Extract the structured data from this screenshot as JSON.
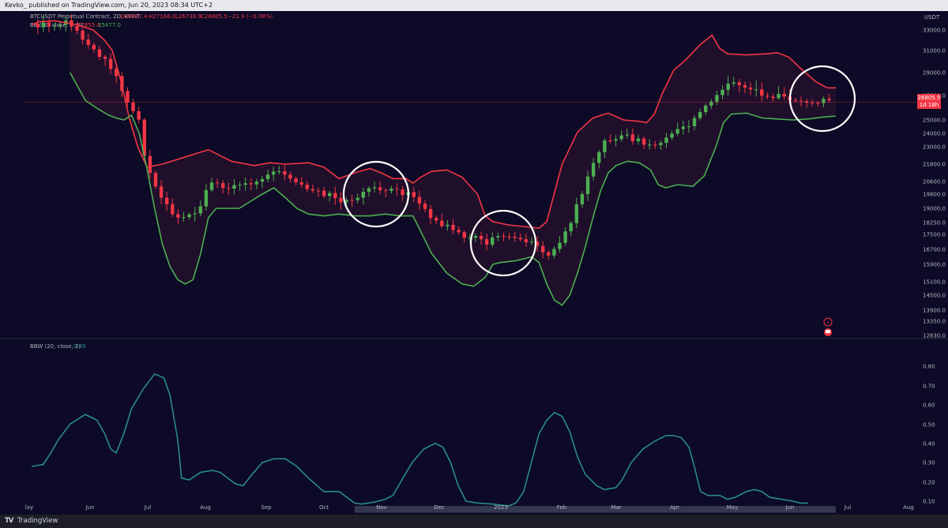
{
  "header": {
    "published_text": "Kevko_ published on TradingView.com, Jun 20, 2023 08:34 UTC+2"
  },
  "footer": {
    "brand": "TradingView"
  },
  "colors": {
    "background": "#0c0a26",
    "bb_upper": "#f23645",
    "bb_lower": "#4caf50",
    "bull": "#26a69a",
    "bull_candle": "#4caf50",
    "bear_candle": "#f23645",
    "bbw_line": "#2a8a8f",
    "axis_text": "#b2b5be",
    "price_tag": "#f23645"
  },
  "legend": {
    "symbol_line": {
      "symbol": "BTCUSDT Perpetual Contract, 2D, BYBIT",
      "o": "O26827.4",
      "h": "H27166.0",
      "l": "L26738.9",
      "c": "C26805.5",
      "change": "−21.9 (−0.08%)"
    },
    "bb_line": {
      "label": "BB (20, close, 2, 0)",
      "upper": "27855.4",
      "lower": "25477.0"
    },
    "bbw_line": {
      "label": "BBW (20, close, 2)",
      "value": "0.09"
    }
  },
  "price_axis": {
    "currency": "USDT",
    "ticks": [
      "33000.0",
      "31000.0",
      "29000.0",
      "27500.0",
      "25000.0",
      "24000.0",
      "23000.0",
      "21800.0",
      "20600.0",
      "19800.0",
      "19000.0",
      "18250.0",
      "17500.0",
      "16700.0",
      "15900.0",
      "15100.0",
      "14500.0",
      "13900.0",
      "13350.0",
      "12830.0"
    ],
    "last_price_tag": "26805.5",
    "countdown_tag": "1d 18h"
  },
  "bbw_axis": {
    "ticks": [
      "0.80",
      "0.70",
      "0.60",
      "0.50",
      "0.40",
      "0.30",
      "0.20",
      "0.10"
    ]
  },
  "time_axis": {
    "labels": [
      "lay",
      "Jun",
      "Jul",
      "Aug",
      "Sep",
      "Oct",
      "Nov",
      "Dec",
      "2023",
      "Feb",
      "Mar",
      "Apr",
      "May",
      "Jun",
      "Jul",
      "Aug"
    ]
  },
  "chart_data": [
    {
      "type": "candlestick",
      "title": "BTCUSDT Perpetual Contract, 2D, BYBIT",
      "y_scale": "log",
      "ylim": [
        12830,
        33000
      ],
      "x_range": [
        "2022-05",
        "2023-08"
      ],
      "series": [
        {
          "name": "BB upper",
          "values": [
            [
              0,
              33500
            ],
            [
              10,
              33800
            ],
            [
              30,
              33900
            ],
            [
              60,
              33500
            ],
            [
              80,
              33000
            ],
            [
              95,
              32000
            ],
            [
              105,
              31000
            ],
            [
              116,
              28500
            ],
            [
              127,
              25200
            ],
            [
              138,
              23000
            ],
            [
              150,
              21600
            ],
            [
              170,
              21800
            ],
            [
              200,
              22300
            ],
            [
              230,
              22800
            ],
            [
              260,
              22000
            ],
            [
              290,
              21700
            ],
            [
              310,
              21900
            ],
            [
              330,
              21800
            ],
            [
              360,
              21900
            ],
            [
              380,
              21600
            ],
            [
              400,
              20800
            ],
            [
              420,
              21200
            ],
            [
              440,
              21500
            ],
            [
              455,
              21200
            ],
            [
              470,
              20800
            ],
            [
              487,
              20800
            ],
            [
              496,
              20500
            ],
            [
              506,
              20900
            ],
            [
              520,
              21300
            ],
            [
              540,
              21400
            ],
            [
              560,
              20900
            ],
            [
              580,
              19800
            ],
            [
              590,
              18600
            ],
            [
              600,
              18300
            ],
            [
              620,
              18100
            ],
            [
              640,
              18000
            ],
            [
              660,
              17900
            ],
            [
              670,
              18300
            ],
            [
              690,
              21800
            ],
            [
              710,
              24100
            ],
            [
              730,
              25200
            ],
            [
              750,
              25700
            ],
            [
              770,
              25000
            ],
            [
              790,
              24900
            ],
            [
              800,
              24800
            ],
            [
              810,
              25600
            ],
            [
              820,
              27600
            ],
            [
              835,
              29200
            ],
            [
              850,
              30100
            ],
            [
              870,
              31600
            ],
            [
              885,
              32500
            ],
            [
              895,
              31200
            ],
            [
              905,
              30700
            ],
            [
              930,
              30600
            ],
            [
              955,
              30700
            ],
            [
              970,
              30800
            ],
            [
              985,
              30400
            ],
            [
              1000,
              29400
            ],
            [
              1020,
              28400
            ],
            [
              1035,
              28000
            ],
            [
              1046,
              28000
            ]
          ]
        },
        {
          "name": "BB lower",
          "values": [
            [
              50,
              29000
            ],
            [
              70,
              27000
            ],
            [
              85,
              26200
            ],
            [
              100,
              25500
            ],
            [
              110,
              25200
            ],
            [
              120,
              25000
            ],
            [
              130,
              25500
            ],
            [
              140,
              24000
            ],
            [
              150,
              21500
            ],
            [
              160,
              19000
            ],
            [
              170,
              17000
            ],
            [
              180,
              15800
            ],
            [
              190,
              15200
            ],
            [
              200,
              15000
            ],
            [
              210,
              15200
            ],
            [
              220,
              16500
            ],
            [
              230,
              18500
            ],
            [
              240,
              19000
            ],
            [
              255,
              19000
            ],
            [
              270,
              19000
            ],
            [
              285,
              19400
            ],
            [
              300,
              19800
            ],
            [
              315,
              20200
            ],
            [
              330,
              19600
            ],
            [
              345,
              19000
            ],
            [
              360,
              18700
            ],
            [
              380,
              18600
            ],
            [
              400,
              18700
            ],
            [
              420,
              18600
            ],
            [
              440,
              18600
            ],
            [
              460,
              18700
            ],
            [
              480,
              18600
            ],
            [
              496,
              18600
            ],
            [
              506,
              17700
            ],
            [
              520,
              16500
            ],
            [
              540,
              15500
            ],
            [
              560,
              15000
            ],
            [
              575,
              14900
            ],
            [
              590,
              15300
            ],
            [
              600,
              15900
            ],
            [
              610,
              16000
            ],
            [
              630,
              16100
            ],
            [
              650,
              16300
            ],
            [
              660,
              16000
            ],
            [
              670,
              15000
            ],
            [
              680,
              14300
            ],
            [
              690,
              14100
            ],
            [
              700,
              14500
            ],
            [
              710,
              15500
            ],
            [
              720,
              16800
            ],
            [
              730,
              18500
            ],
            [
              740,
              20000
            ],
            [
              750,
              21200
            ],
            [
              760,
              21700
            ],
            [
              775,
              22000
            ],
            [
              790,
              21900
            ],
            [
              805,
              21400
            ],
            [
              815,
              20400
            ],
            [
              825,
              20200
            ],
            [
              840,
              20400
            ],
            [
              860,
              20300
            ],
            [
              875,
              21000
            ],
            [
              890,
              23000
            ],
            [
              900,
              24800
            ],
            [
              910,
              25600
            ],
            [
              930,
              25700
            ],
            [
              950,
              25200
            ],
            [
              970,
              25100
            ],
            [
              990,
              25000
            ],
            [
              1010,
              25100
            ],
            [
              1030,
              25300
            ],
            [
              1046,
              25400
            ]
          ]
        }
      ]
    },
    {
      "type": "line",
      "title": "BBW (20, close, 2)",
      "ylim": [
        0.05,
        0.85
      ],
      "series": [
        {
          "name": "BBW",
          "values": [
            [
              0,
              0.28
            ],
            [
              15,
              0.29
            ],
            [
              25,
              0.35
            ],
            [
              35,
              0.42
            ],
            [
              50,
              0.5
            ],
            [
              70,
              0.55
            ],
            [
              85,
              0.52
            ],
            [
              95,
              0.45
            ],
            [
              103,
              0.37
            ],
            [
              110,
              0.35
            ],
            [
              120,
              0.45
            ],
            [
              130,
              0.58
            ],
            [
              145,
              0.68
            ],
            [
              160,
              0.76
            ],
            [
              172,
              0.74
            ],
            [
              180,
              0.65
            ],
            [
              190,
              0.42
            ],
            [
              195,
              0.22
            ],
            [
              205,
              0.21
            ],
            [
              220,
              0.25
            ],
            [
              235,
              0.26
            ],
            [
              245,
              0.25
            ],
            [
              255,
              0.22
            ],
            [
              265,
              0.19
            ],
            [
              275,
              0.18
            ],
            [
              285,
              0.23
            ],
            [
              300,
              0.3
            ],
            [
              315,
              0.32
            ],
            [
              330,
              0.32
            ],
            [
              345,
              0.28
            ],
            [
              360,
              0.22
            ],
            [
              380,
              0.15
            ],
            [
              400,
              0.15
            ],
            [
              410,
              0.12
            ],
            [
              420,
              0.09
            ],
            [
              430,
              0.085
            ],
            [
              445,
              0.095
            ],
            [
              460,
              0.11
            ],
            [
              470,
              0.13
            ],
            [
              480,
              0.2
            ],
            [
              495,
              0.3
            ],
            [
              510,
              0.37
            ],
            [
              525,
              0.4
            ],
            [
              535,
              0.38
            ],
            [
              545,
              0.3
            ],
            [
              555,
              0.18
            ],
            [
              565,
              0.1
            ],
            [
              580,
              0.09
            ],
            [
              600,
              0.085
            ],
            [
              610,
              0.08
            ],
            [
              620,
              0.075
            ],
            [
              630,
              0.09
            ],
            [
              640,
              0.15
            ],
            [
              650,
              0.3
            ],
            [
              660,
              0.45
            ],
            [
              670,
              0.52
            ],
            [
              680,
              0.56
            ],
            [
              690,
              0.54
            ],
            [
              700,
              0.46
            ],
            [
              710,
              0.33
            ],
            [
              720,
              0.24
            ],
            [
              735,
              0.18
            ],
            [
              745,
              0.16
            ],
            [
              760,
              0.17
            ],
            [
              768,
              0.21
            ],
            [
              780,
              0.3
            ],
            [
              795,
              0.37
            ],
            [
              810,
              0.41
            ],
            [
              825,
              0.44
            ],
            [
              835,
              0.44
            ],
            [
              845,
              0.43
            ],
            [
              855,
              0.38
            ],
            [
              862,
              0.28
            ],
            [
              870,
              0.15
            ],
            [
              880,
              0.13
            ],
            [
              895,
              0.13
            ],
            [
              905,
              0.11
            ],
            [
              915,
              0.12
            ],
            [
              930,
              0.15
            ],
            [
              940,
              0.16
            ],
            [
              950,
              0.15
            ],
            [
              960,
              0.12
            ],
            [
              975,
              0.11
            ],
            [
              990,
              0.1
            ],
            [
              1000,
              0.09
            ],
            [
              1010,
              0.09
            ]
          ]
        }
      ]
    }
  ]
}
